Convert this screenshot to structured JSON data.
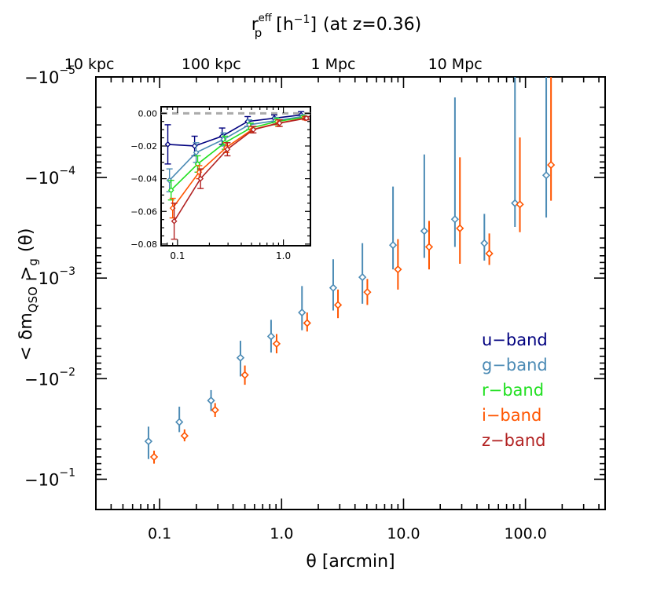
{
  "chart_data": [
    {
      "type": "scatter",
      "role": "main",
      "title": "",
      "xlabel": "θ [arcmin]",
      "ylabel": "< δm_QSO >_g (θ)",
      "ylabel_parts": {
        "open": "<",
        "delta": "δm",
        "sub": "QSO",
        "close": ">",
        "sub2": "g",
        "arg": "(θ)"
      },
      "x_scale": "log",
      "y_scale": "log-negative",
      "xlim": [
        0.03,
        450
      ],
      "ylim": [
        -0.2,
        -1e-05
      ],
      "x_tick_labels": [
        "0.1",
        "1.0",
        "10.0",
        "100.0"
      ],
      "x_tick_values": [
        0.1,
        1.0,
        10.0,
        100.0
      ],
      "y_tick_labels": [
        {
          "base": "−10",
          "exp": "−5",
          "value": -1e-05
        },
        {
          "base": "−10",
          "exp": "−4",
          "value": -0.0001
        },
        {
          "base": "−10",
          "exp": "−3",
          "value": -0.001
        },
        {
          "base": "−10",
          "exp": "−2",
          "value": -0.01
        },
        {
          "base": "−10",
          "exp": "−1",
          "value": -0.1
        }
      ],
      "top_axis": {
        "label_parts": {
          "r": "r",
          "sup": "eff",
          "sub": "p",
          "unit": "[h",
          "unit_exp": "−1",
          "unit_close": "]",
          "note": "(at z=0.36)"
        },
        "tick_labels": [
          {
            "text": "10 kpc",
            "x": 0.0265
          },
          {
            "text": "100 kpc",
            "x": 0.265
          },
          {
            "text": "1 Mpc",
            "x": 2.65
          },
          {
            "text": "10 Mpc",
            "x": 26.5
          }
        ]
      },
      "legend_placement": "right",
      "legend": [
        {
          "label": "u−band",
          "color": "#00007f"
        },
        {
          "label": "g−band",
          "color": "#4c8bb5"
        },
        {
          "label": "r−band",
          "color": "#22e022"
        },
        {
          "label": "i−band",
          "color": "#ff5500"
        },
        {
          "label": "z−band",
          "color": "#b22222"
        }
      ],
      "series": [
        {
          "name": "g−band",
          "color": "#4c8bb5",
          "points": [
            {
              "x": 0.081,
              "y": -0.042,
              "lo": -0.063,
              "hi": -0.03
            },
            {
              "x": 0.145,
              "y": -0.027,
              "lo": -0.034,
              "hi": -0.019
            },
            {
              "x": 0.264,
              "y": -0.0165,
              "lo": -0.021,
              "hi": -0.013
            },
            {
              "x": 0.46,
              "y": -0.0062,
              "lo": -0.0095,
              "hi": -0.0042
            },
            {
              "x": 0.82,
              "y": -0.0038,
              "lo": -0.0055,
              "hi": -0.0026
            },
            {
              "x": 1.47,
              "y": -0.0022,
              "lo": -0.0033,
              "hi": -0.0012
            },
            {
              "x": 2.65,
              "y": -0.00125,
              "lo": -0.0021,
              "hi": -0.00065
            },
            {
              "x": 4.6,
              "y": -0.00098,
              "lo": -0.0018,
              "hi": -0.00045
            },
            {
              "x": 8.2,
              "y": -0.00047,
              "lo": -0.00082,
              "hi": -0.000123
            },
            {
              "x": 14.8,
              "y": -0.00034,
              "lo": -0.00063,
              "hi": -5.9e-05
            },
            {
              "x": 26.4,
              "y": -0.00026,
              "lo": -0.00049,
              "hi": -1.6e-05
            },
            {
              "x": 46,
              "y": -0.00045,
              "lo": -0.00067,
              "hi": -0.00023
            },
            {
              "x": 82,
              "y": -0.00018,
              "lo": -0.00031,
              "hi": -1e-05
            },
            {
              "x": 148,
              "y": -9.5e-05,
              "lo": -0.00025,
              "hi": -1e-05
            }
          ]
        },
        {
          "name": "i−band",
          "color": "#ff5500",
          "points": [
            {
              "x": 0.09,
              "y": -0.06,
              "lo": -0.07,
              "hi": -0.052
            },
            {
              "x": 0.16,
              "y": -0.037,
              "lo": -0.042,
              "hi": -0.032
            },
            {
              "x": 0.285,
              "y": -0.0205,
              "lo": -0.024,
              "hi": -0.0175
            },
            {
              "x": 0.5,
              "y": -0.0092,
              "lo": -0.0115,
              "hi": -0.0074
            },
            {
              "x": 0.91,
              "y": -0.0045,
              "lo": -0.0056,
              "hi": -0.0036
            },
            {
              "x": 1.62,
              "y": -0.0028,
              "lo": -0.0034,
              "hi": -0.0022
            },
            {
              "x": 2.9,
              "y": -0.00185,
              "lo": -0.0025,
              "hi": -0.0013
            },
            {
              "x": 5.05,
              "y": -0.00138,
              "lo": -0.00185,
              "hi": -0.00102
            },
            {
              "x": 9.0,
              "y": -0.00082,
              "lo": -0.0013,
              "hi": -0.00041
            },
            {
              "x": 16.2,
              "y": -0.00049,
              "lo": -0.00082,
              "hi": -0.00027
            },
            {
              "x": 29,
              "y": -0.00032,
              "lo": -0.00072,
              "hi": -6.3e-05
            },
            {
              "x": 50.5,
              "y": -0.00057,
              "lo": -0.00074,
              "hi": -0.00036
            },
            {
              "x": 90,
              "y": -0.000185,
              "lo": -0.00035,
              "hi": -4e-05
            },
            {
              "x": 162,
              "y": -7.5e-05,
              "lo": -0.00017,
              "hi": -1e-05
            }
          ]
        }
      ]
    },
    {
      "type": "line",
      "role": "inset",
      "title": "",
      "x_scale": "log",
      "xlim": [
        0.07,
        1.8
      ],
      "ylim": [
        -0.081,
        0.004
      ],
      "x_tick_labels": [
        "0.1",
        "1.0"
      ],
      "x_tick_values": [
        0.1,
        1.0
      ],
      "y_tick_labels": [
        "0.00",
        "−0.02",
        "−0.04",
        "−0.06",
        "−0.08"
      ],
      "y_tick_values": [
        0.0,
        -0.02,
        -0.04,
        -0.06,
        -0.08
      ],
      "reference_line": {
        "y": 0.0,
        "color": "#aaaaaa",
        "style": "dashed"
      },
      "series": [
        {
          "name": "u−band",
          "color": "#00007f",
          "x": [
            0.081,
            0.145,
            0.264,
            0.46,
            0.82,
            1.47
          ],
          "y": [
            -0.019,
            -0.02,
            -0.014,
            -0.005,
            -0.003,
            -0.001
          ],
          "err": [
            0.012,
            0.006,
            0.005,
            0.003,
            0.002,
            0.002
          ]
        },
        {
          "name": "g−band",
          "color": "#4c8bb5",
          "x": [
            0.084,
            0.15,
            0.272,
            0.475,
            0.845,
            1.51
          ],
          "y": [
            -0.041,
            -0.024,
            -0.016,
            -0.007,
            -0.0045,
            -0.002
          ],
          "err": [
            0.007,
            0.006,
            0.004,
            0.003,
            0.002,
            0.001
          ]
        },
        {
          "name": "r−band",
          "color": "#22e022",
          "x": [
            0.087,
            0.155,
            0.28,
            0.49,
            0.87,
            1.56
          ],
          "y": [
            -0.047,
            -0.031,
            -0.018,
            -0.009,
            -0.005,
            -0.0025
          ],
          "err": [
            0.006,
            0.005,
            0.004,
            0.003,
            0.002,
            0.001
          ]
        },
        {
          "name": "i−band",
          "color": "#ff5500",
          "x": [
            0.09,
            0.16,
            0.288,
            0.505,
            0.895,
            1.6
          ],
          "y": [
            -0.058,
            -0.036,
            -0.021,
            -0.01,
            -0.006,
            -0.003
          ],
          "err": [
            0.006,
            0.004,
            0.003,
            0.002,
            0.002,
            0.001
          ]
        },
        {
          "name": "z−band",
          "color": "#b22222",
          "x": [
            0.093,
            0.165,
            0.296,
            0.52,
            0.92,
            1.65
          ],
          "y": [
            -0.066,
            -0.04,
            -0.022,
            -0.01,
            -0.006,
            -0.003
          ],
          "err": [
            0.011,
            0.006,
            0.004,
            0.002,
            0.002,
            0.001
          ]
        }
      ]
    }
  ]
}
